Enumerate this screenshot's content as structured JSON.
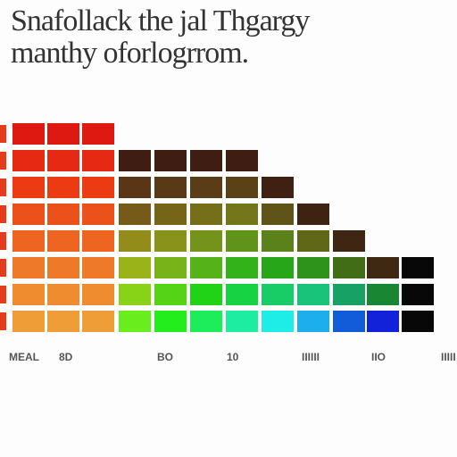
{
  "header": {
    "title_line1": "Snafollack the jal Thgargy",
    "title_line2": "manthy oforlogrrom."
  },
  "axis_labels": [
    "MEAL",
    "8D",
    "BO",
    "10",
    "IIIIII",
    "IIO",
    "IIIII"
  ]
}
